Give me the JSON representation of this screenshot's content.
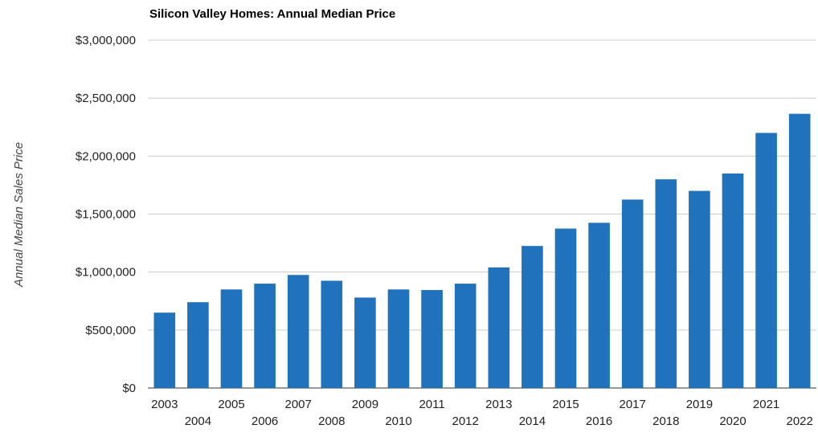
{
  "chart_data": {
    "type": "bar",
    "title": "Silicon Valley Homes: Annual Median Price",
    "xlabel": "",
    "ylabel": "Annual Median Sales Price",
    "categories": [
      "2003",
      "2004",
      "2005",
      "2006",
      "2007",
      "2008",
      "2009",
      "2010",
      "2011",
      "2012",
      "2013",
      "2014",
      "2015",
      "2016",
      "2017",
      "2018",
      "2019",
      "2020",
      "2021",
      "2022"
    ],
    "values": [
      650000,
      740000,
      850000,
      900000,
      975000,
      925000,
      780000,
      850000,
      845000,
      900000,
      1040000,
      1225000,
      1375000,
      1425000,
      1625000,
      1800000,
      1700000,
      1850000,
      2200000,
      2365000
    ],
    "ylim": [
      0,
      3000000
    ],
    "yticks": [
      0,
      500000,
      1000000,
      1500000,
      2000000,
      2500000,
      3000000
    ],
    "ytick_labels": [
      "$0",
      "$500,000",
      "$1,000,000",
      "$1,500,000",
      "$2,000,000",
      "$2,500,000",
      "$3,000,000"
    ],
    "grid": true,
    "legend": "none",
    "bar_color": "#2172bd"
  }
}
